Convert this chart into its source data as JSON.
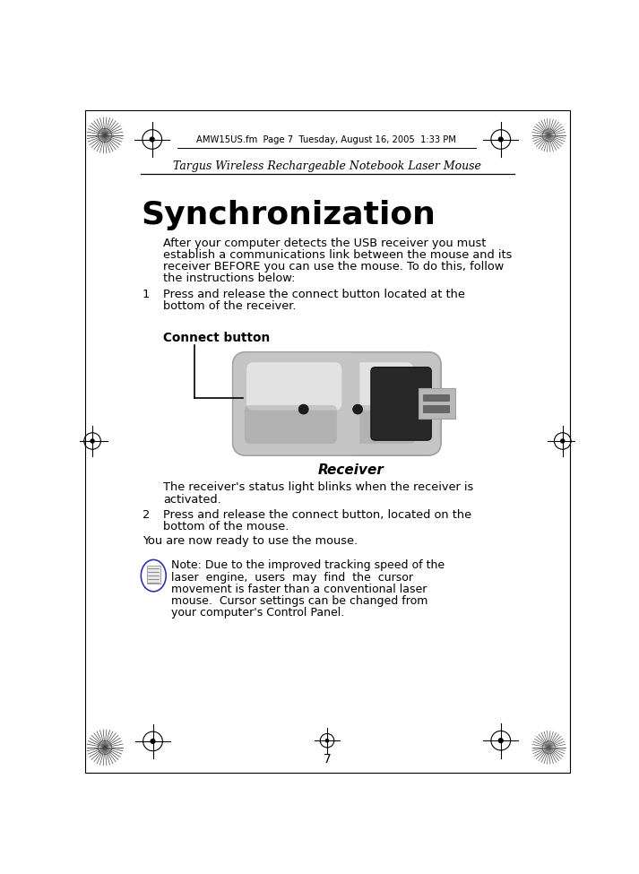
{
  "bg_color": "#ffffff",
  "header_text": "AMW15US.fm  Page 7  Tuesday, August 16, 2005  1:33 PM",
  "subtitle": "Targus Wireless Rechargeable Notebook Laser Mouse",
  "title": "Synchronization",
  "para1_lines": [
    "After your computer detects the USB receiver you must",
    "establish a communications link between the mouse and its",
    "receiver BEFORE you can use the mouse. To do this, follow",
    "the instructions below:"
  ],
  "step1_text_lines": [
    "Press and release the connect button located at the",
    "bottom of the receiver."
  ],
  "connect_button_label": "Connect button",
  "receiver_label": "Receiver",
  "after_img_lines": [
    "The receiver's status light blinks when the receiver is",
    "activated."
  ],
  "step2_text_lines": [
    "Press and release the connect button, located on the",
    "bottom of the mouse."
  ],
  "ready_text": "You are now ready to use the mouse.",
  "note_line1": "Note: Due to the improved tracking speed of the",
  "note_line2": "laser  engine,  users  may  find  the  cursor",
  "note_line3": "movement is faster than a conventional laser",
  "note_line4": "mouse.  Cursor settings can be changed from",
  "note_line5": "your computer's Control Panel.",
  "page_number": "7",
  "text_color": "#000000",
  "line_color": "#000000",
  "gray_light": "#d0d0d0",
  "gray_mid": "#a0a0a0",
  "gray_dark": "#3a3a3a",
  "black": "#111111",
  "usb_silver": "#c5c5c5",
  "usb_highlight": "#e8e8e8",
  "usb_shadow": "#909090",
  "usb_black": "#282828",
  "usb_plug_silver": "#b8b8b8"
}
